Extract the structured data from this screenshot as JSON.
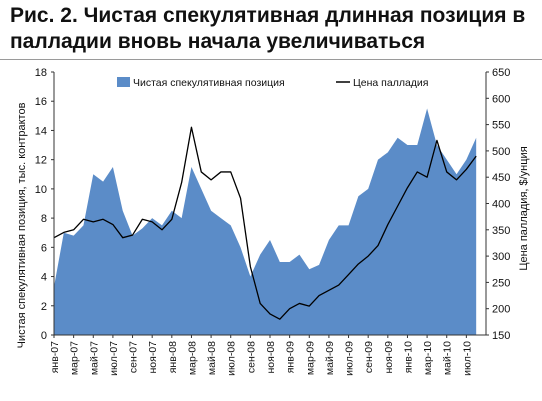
{
  "title": "Рис. 2. Чистая спекулятивная длинная позиция в палладии вновь начала увеличиваться",
  "chart_data": {
    "type": "area+line",
    "title": "Рис. 2. Чистая спекулятивная длинная позиция в палладии вновь начала увеличиваться",
    "ylabel_left": "Чистая спекулятивная позиция, тыс. контрактов",
    "ylabel_right": "Цена палладия, $/унция",
    "ylim_left": [
      0,
      18
    ],
    "ylim_right": [
      150,
      650
    ],
    "yticks_left": [
      "0",
      "2",
      "4",
      "6",
      "8",
      "10",
      "12",
      "14",
      "16",
      "18"
    ],
    "yticks_right": [
      "150",
      "200",
      "250",
      "300",
      "350",
      "400",
      "450",
      "500",
      "550",
      "600",
      "650"
    ],
    "xlim": [
      "2007-01",
      "2010-09"
    ],
    "xtick_labels": [
      "янв-07",
      "мар-07",
      "май-07",
      "июл-07",
      "сен-07",
      "ноя-07",
      "янв-08",
      "мар-08",
      "май-08",
      "июл-08",
      "сен-08",
      "ноя-08",
      "янв-09",
      "мар-09",
      "май-09",
      "июл-09",
      "сен-09",
      "ноя-09",
      "янв-10",
      "мар-10",
      "май-10",
      "июл-10"
    ],
    "legend_position": "top",
    "grid": false,
    "series": [
      {
        "name": "Чистая спекулятивная позиция",
        "kind": "area",
        "axis": "left",
        "color": "#5b8cc8",
        "x": [
          "2007-01",
          "2007-02",
          "2007-03",
          "2007-04",
          "2007-05",
          "2007-06",
          "2007-07",
          "2007-08",
          "2007-09",
          "2007-10",
          "2007-11",
          "2007-12",
          "2008-01",
          "2008-02",
          "2008-03",
          "2008-04",
          "2008-05",
          "2008-06",
          "2008-07",
          "2008-08",
          "2008-09",
          "2008-10",
          "2008-11",
          "2008-12",
          "2009-01",
          "2009-02",
          "2009-03",
          "2009-04",
          "2009-05",
          "2009-06",
          "2009-07",
          "2009-08",
          "2009-09",
          "2009-10",
          "2009-11",
          "2009-12",
          "2010-01",
          "2010-02",
          "2010-03",
          "2010-04",
          "2010-05",
          "2010-06",
          "2010-07",
          "2010-08"
        ],
        "values": [
          3.3,
          7.0,
          6.8,
          7.5,
          11.0,
          10.5,
          11.5,
          8.5,
          6.8,
          7.3,
          8.0,
          7.5,
          8.5,
          8.0,
          11.5,
          10.0,
          8.5,
          8.0,
          7.5,
          6.0,
          4.0,
          5.5,
          6.5,
          5.0,
          5.0,
          5.5,
          4.5,
          4.8,
          6.5,
          7.5,
          7.5,
          9.5,
          10.0,
          12.0,
          12.5,
          13.5,
          13.0,
          13.0,
          15.5,
          13.0,
          12.0,
          11.0,
          12.0,
          13.5
        ]
      },
      {
        "name": "Цена палладия",
        "kind": "line",
        "axis": "right",
        "color": "#000000",
        "x": [
          "2007-01",
          "2007-02",
          "2007-03",
          "2007-04",
          "2007-05",
          "2007-06",
          "2007-07",
          "2007-08",
          "2007-09",
          "2007-10",
          "2007-11",
          "2007-12",
          "2008-01",
          "2008-02",
          "2008-03",
          "2008-04",
          "2008-05",
          "2008-06",
          "2008-07",
          "2008-08",
          "2008-09",
          "2008-10",
          "2008-11",
          "2008-12",
          "2009-01",
          "2009-02",
          "2009-03",
          "2009-04",
          "2009-05",
          "2009-06",
          "2009-07",
          "2009-08",
          "2009-09",
          "2009-10",
          "2009-11",
          "2009-12",
          "2010-01",
          "2010-02",
          "2010-03",
          "2010-04",
          "2010-05",
          "2010-06",
          "2010-07",
          "2010-08"
        ],
        "values": [
          335,
          345,
          350,
          370,
          365,
          370,
          360,
          335,
          340,
          370,
          365,
          350,
          370,
          440,
          545,
          460,
          445,
          460,
          460,
          410,
          280,
          210,
          190,
          180,
          200,
          210,
          205,
          225,
          235,
          245,
          265,
          285,
          300,
          320,
          360,
          395,
          430,
          460,
          450,
          520,
          460,
          445,
          465,
          490
        ]
      }
    ]
  }
}
